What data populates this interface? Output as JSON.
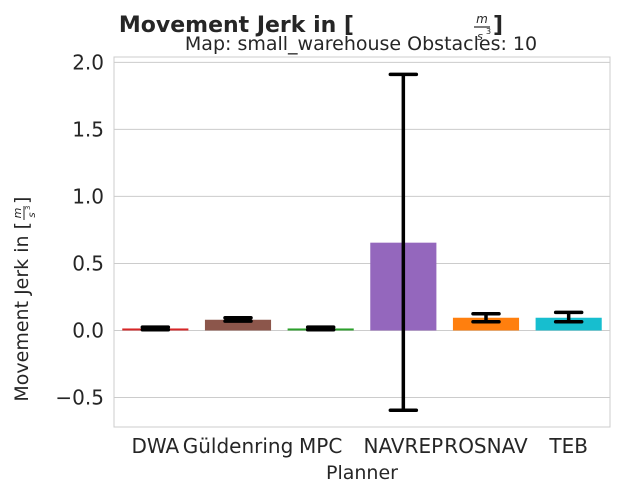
{
  "chart_data": {
    "type": "bar",
    "title": "Movement Jerk in [m/s³]",
    "title_prefix": "Movement Jerk in [",
    "title_suffix": "]",
    "unit_numerator": "m",
    "unit_denominator": "s",
    "unit_exponent": "3",
    "subtitle": "Map: small_warehouse Obstacles: 10",
    "xlabel": "Planner",
    "ylabel": "Movement Jerk in [m/s³]",
    "ylabel_prefix": "Movement Jerk in [",
    "ylabel_suffix": "]",
    "categories": [
      "DWA",
      "Güldenring",
      "MPC",
      "NAVREP",
      "ROSNAV",
      "TEB"
    ],
    "values": [
      0.015,
      0.08,
      0.015,
      0.655,
      0.095,
      0.095
    ],
    "error_low": [
      0.005,
      0.07,
      0.005,
      -0.595,
      0.065,
      0.065
    ],
    "error_high": [
      0.025,
      0.095,
      0.025,
      1.91,
      0.125,
      0.135
    ],
    "colors": [
      "#d62728",
      "#8c564b",
      "#2ca02c",
      "#9467bd",
      "#ff7f0e",
      "#17becf"
    ],
    "ylim": [
      -0.72,
      2.04
    ],
    "yticks": [
      -0.5,
      0.0,
      0.5,
      1.0,
      1.5,
      2.0
    ],
    "ytick_labels": [
      "−0.5",
      "0.0",
      "0.5",
      "1.0",
      "1.5",
      "2.0"
    ],
    "grid": true,
    "legend": "none"
  }
}
